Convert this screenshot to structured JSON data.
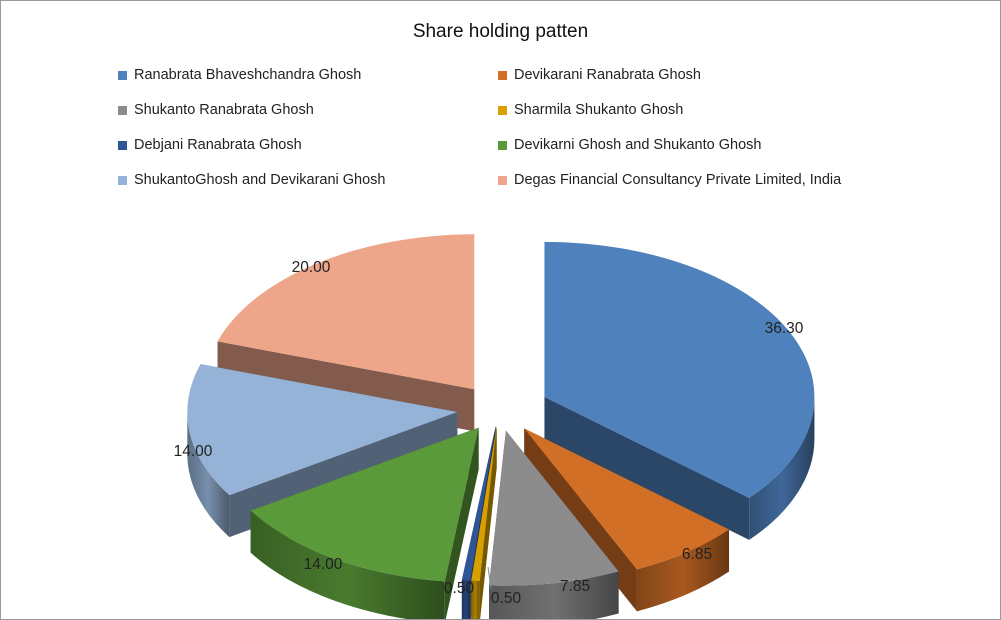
{
  "chart_data": {
    "type": "pie",
    "title": "Share holding patten",
    "legend_position": "top",
    "slices": [
      {
        "name": "Ranabrata Bhaveshchandra Ghosh",
        "value": 36.3,
        "label": "36.30",
        "color": "#4f81bd"
      },
      {
        "name": "Devikarani Ranabrata Ghosh",
        "value": 6.85,
        "label": "6.85",
        "color": "#d26f26"
      },
      {
        "name": "Shukanto Ranabrata Ghosh",
        "value": 7.85,
        "label": "7.85",
        "color": "#8c8c8c"
      },
      {
        "name": "Sharmila Shukanto Ghosh",
        "value": 0.5,
        "label": "0.50",
        "color": "#d7a000"
      },
      {
        "name": "Debjani Ranabrata Ghosh",
        "value": 0.5,
        "label": "0.50",
        "color": "#2f5597"
      },
      {
        "name": "Devikarni Ghosh and Shukanto Ghosh",
        "value": 14.0,
        "label": "14.00",
        "color": "#5b9a3a"
      },
      {
        "name": "ShukantoGhosh and Devikarani Ghosh",
        "value": 14.0,
        "label": "14.00",
        "color": "#95b3d7"
      },
      {
        "name": "Degas Financial Consultancy Private Limited, India",
        "value": 20.0,
        "label": "20.00",
        "color": "#eda68a"
      }
    ]
  }
}
